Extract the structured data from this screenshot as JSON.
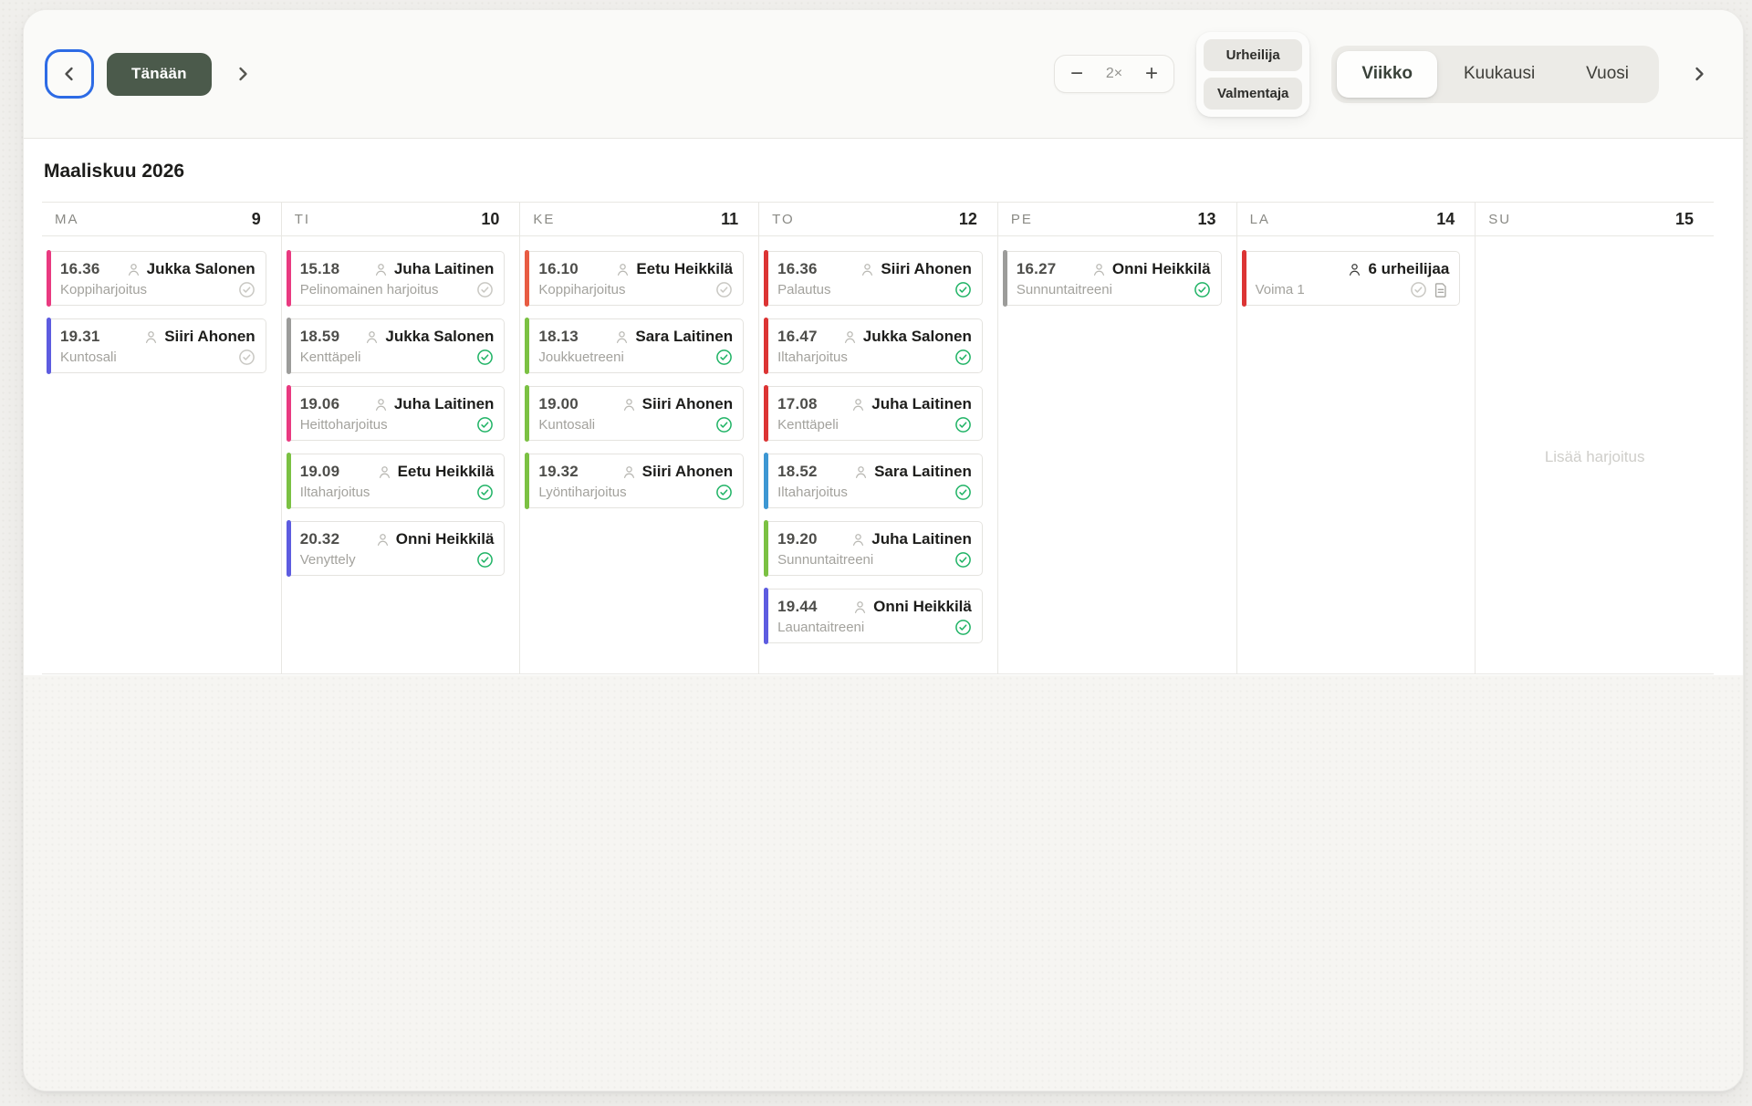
{
  "toolbar": {
    "today_label": "Tänään",
    "zoom_out_label": "−",
    "zoom_level": "2×",
    "zoom_in_label": "+",
    "roles": [
      {
        "label": "Urheilija"
      },
      {
        "label": "Valmentaja"
      }
    ],
    "views": [
      {
        "label": "Viikko",
        "selected": true
      },
      {
        "label": "Kuukausi",
        "selected": false
      },
      {
        "label": "Vuosi",
        "selected": false
      }
    ]
  },
  "calendar": {
    "title": "Maaliskuu 2026",
    "add_training_label": "Lisää harjoitus",
    "status_colors": {
      "confirmed": "#1fb365",
      "unconfirmed": "#c9c8c3"
    },
    "accent_palette": {
      "pink": "#e93a80",
      "gray": "#9c9c9a",
      "lime": "#7bc143",
      "red": "#dc3434",
      "coral": "#e85c43",
      "sky": "#3d97d3",
      "indigo": "#5d5ce0"
    },
    "days": [
      {
        "abbr": "MA",
        "date": "9",
        "events": [
          {
            "time": "16.36",
            "person": "Jukka Salonen",
            "activity": "Koppiharjoitus",
            "accent": "#e93a80",
            "status": "unconfirmed"
          },
          {
            "time": "19.31",
            "person": "Siiri Ahonen",
            "activity": "Kuntosali",
            "accent": "#5d5ce0",
            "status": "unconfirmed"
          }
        ]
      },
      {
        "abbr": "TI",
        "date": "10",
        "events": [
          {
            "time": "15.18",
            "person": "Juha Laitinen",
            "activity": "Pelinomainen harjoitus",
            "accent": "#e93a80",
            "status": "unconfirmed"
          },
          {
            "time": "18.59",
            "person": "Jukka Salonen",
            "activity": "Kenttäpeli",
            "accent": "#9c9c9a",
            "status": "confirmed"
          },
          {
            "time": "19.06",
            "person": "Juha Laitinen",
            "activity": "Heittoharjoitus",
            "accent": "#e93a80",
            "status": "confirmed"
          },
          {
            "time": "19.09",
            "person": "Eetu Heikkilä",
            "activity": "Iltaharjoitus",
            "accent": "#7bc143",
            "status": "confirmed"
          },
          {
            "time": "20.32",
            "person": "Onni Heikkilä",
            "activity": "Venyttely",
            "accent": "#5d5ce0",
            "status": "confirmed"
          }
        ]
      },
      {
        "abbr": "KE",
        "date": "11",
        "events": [
          {
            "time": "16.10",
            "person": "Eetu Heikkilä",
            "activity": "Koppiharjoitus",
            "accent": "#e85c43",
            "status": "unconfirmed"
          },
          {
            "time": "18.13",
            "person": "Sara Laitinen",
            "activity": "Joukkuetreeni",
            "accent": "#7bc143",
            "status": "confirmed"
          },
          {
            "time": "19.00",
            "person": "Siiri Ahonen",
            "activity": "Kuntosali",
            "accent": "#7bc143",
            "status": "confirmed"
          },
          {
            "time": "19.32",
            "person": "Siiri Ahonen",
            "activity": "Lyöntiharjoitus",
            "accent": "#7bc143",
            "status": "confirmed"
          }
        ]
      },
      {
        "abbr": "TO",
        "date": "12",
        "events": [
          {
            "time": "16.36",
            "person": "Siiri Ahonen",
            "activity": "Palautus",
            "accent": "#dc3434",
            "status": "confirmed"
          },
          {
            "time": "16.47",
            "person": "Jukka Salonen",
            "activity": "Iltaharjoitus",
            "accent": "#dc3434",
            "status": "confirmed"
          },
          {
            "time": "17.08",
            "person": "Juha Laitinen",
            "activity": "Kenttäpeli",
            "accent": "#dc3434",
            "status": "confirmed"
          },
          {
            "time": "18.52",
            "person": "Sara Laitinen",
            "activity": "Iltaharjoitus",
            "accent": "#3d97d3",
            "status": "confirmed"
          },
          {
            "time": "19.20",
            "person": "Juha Laitinen",
            "activity": "Sunnuntaitreeni",
            "accent": "#7bc143",
            "status": "confirmed"
          },
          {
            "time": "19.44",
            "person": "Onni Heikkilä",
            "activity": "Lauantaitreeni",
            "accent": "#5d5ce0",
            "status": "confirmed"
          }
        ]
      },
      {
        "abbr": "PE",
        "date": "13",
        "events": [
          {
            "time": "16.27",
            "person": "Onni Heikkilä",
            "activity": "Sunnuntaitreeni",
            "accent": "#9c9c9a",
            "status": "confirmed"
          }
        ]
      },
      {
        "abbr": "LA",
        "date": "14",
        "events": [
          {
            "time": "",
            "person": "6 urheilijaa",
            "activity": "Voima 1",
            "accent": "#dc3434",
            "status": "unconfirmed",
            "group": true,
            "has_note": true
          }
        ]
      },
      {
        "abbr": "SU",
        "date": "15",
        "events": []
      }
    ]
  }
}
